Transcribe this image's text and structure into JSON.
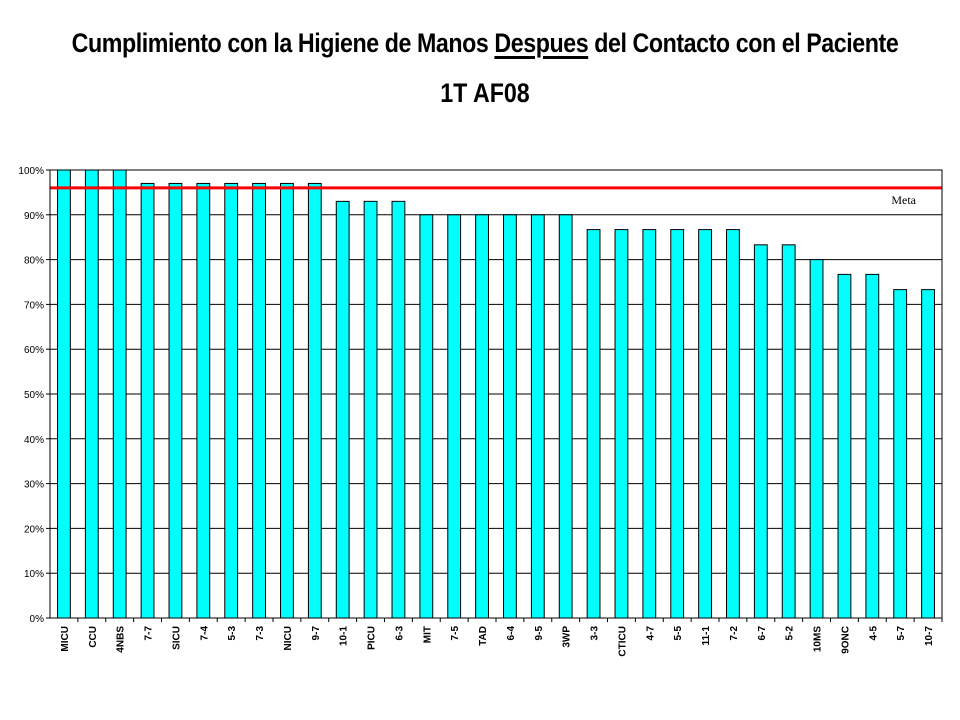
{
  "title": {
    "pre": "Cumplimiento con la Higiene de Manos ",
    "emph": "Despues",
    "post": " del Contacto con el Paciente",
    "line2": "1T AF08"
  },
  "chart_data": {
    "type": "bar",
    "categories": [
      "MICU",
      "CCU",
      "4NBS",
      "7-7",
      "SICU",
      "7-4",
      "5-3",
      "7-3",
      "NICU",
      "9-7",
      "10-1",
      "PICU",
      "6-3",
      "MIT",
      "7-5",
      "TAD",
      "6-4",
      "9-5",
      "3WP",
      "3-3",
      "CTICU",
      "4-7",
      "5-5",
      "11-1",
      "7-2",
      "6-7",
      "5-2",
      "10MS",
      "9ONC",
      "4-5",
      "5-7",
      "10-7"
    ],
    "values": [
      100,
      100,
      100,
      97,
      97,
      97,
      97,
      97,
      97,
      97,
      93,
      93,
      93,
      90,
      90,
      90,
      90,
      90,
      90,
      86.7,
      86.7,
      86.7,
      86.7,
      86.7,
      86.7,
      83.3,
      83.3,
      80,
      76.7,
      76.7,
      73.3,
      73.3
    ],
    "ylim": [
      0,
      100
    ],
    "yticks": [
      "0%",
      "10%",
      "20%",
      "30%",
      "40%",
      "50%",
      "60%",
      "70%",
      "80%",
      "90%",
      "100%"
    ],
    "grid": true,
    "bar_color": "#00FFFF",
    "target_line": {
      "value": 96,
      "label": "Meta",
      "color": "#FF0000"
    }
  }
}
